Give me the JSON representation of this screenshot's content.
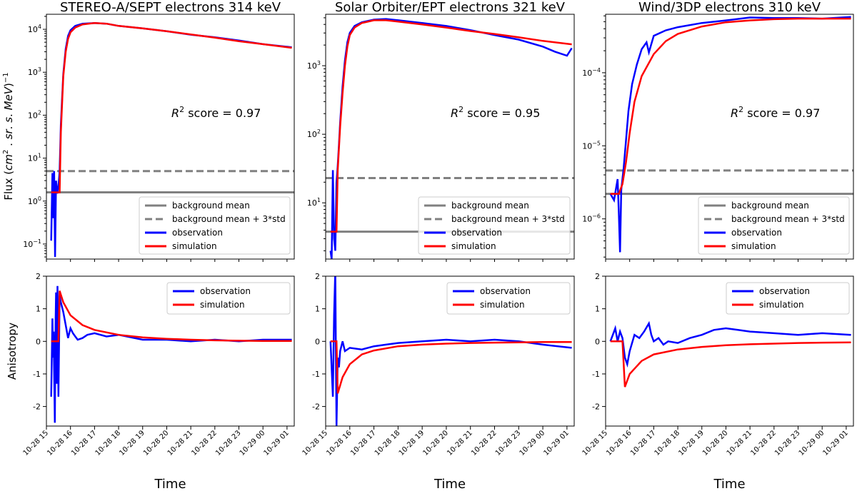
{
  "figure": {
    "ylabel_top_parts": [
      "Flux (",
      "cm",
      "2",
      " . ",
      "sr",
      ". ",
      "s",
      ". ",
      "MeV",
      ")",
      "−1"
    ],
    "ylabel_bottom": "Anisotropy",
    "xlabel": "Time",
    "time_ticks": [
      "10-28 15",
      "10-28 16",
      "10-28 17",
      "10-28 18",
      "10-28 19",
      "10-28 20",
      "10-28 21",
      "10-28 22",
      "10-28 23",
      "10-29 00",
      "10-29 01"
    ],
    "legend_flux": [
      "background mean",
      "background mean + 3*std",
      "observation",
      "simulation"
    ],
    "legend_aniso": [
      "observation",
      "simulation"
    ],
    "r2_parts": [
      "R",
      "2",
      " score = "
    ]
  },
  "colors": {
    "observation": "#0000ff",
    "simulation": "#ff0000",
    "background": "#808080"
  },
  "chart_data": [
    {
      "id": "stereo",
      "type": "line",
      "title": "STEREO-A/SEPT electrons 314 keV",
      "r2_value": "0.97",
      "x_start_hour": 15.2,
      "x_end_hour": 25.2,
      "flux": {
        "yscale": "log",
        "ylim_log10": [
          -1.35,
          4.35
        ],
        "yticks": [
          {
            "exp": -1,
            "label_exp": "−1"
          },
          {
            "exp": 0,
            "label_exp": "0"
          },
          {
            "exp": 1,
            "label_exp": "1"
          },
          {
            "exp": 2,
            "label_exp": "2"
          },
          {
            "exp": 3,
            "label_exp": "3"
          },
          {
            "exp": 4,
            "label_exp": "4"
          }
        ],
        "background_mean": 1.6,
        "background_mean_3std": 5.0,
        "observation": [
          [
            15.2,
            0.12
          ],
          [
            15.25,
            4.5
          ],
          [
            15.28,
            0.4
          ],
          [
            15.32,
            5.0
          ],
          [
            15.36,
            0.05
          ],
          [
            15.4,
            3.0
          ],
          [
            15.45,
            1.5
          ],
          [
            15.5,
            2.2
          ],
          [
            15.55,
            5
          ],
          [
            15.6,
            60
          ],
          [
            15.7,
            900
          ],
          [
            15.8,
            3500
          ],
          [
            15.9,
            7000
          ],
          [
            16.0,
            9500
          ],
          [
            16.2,
            12000
          ],
          [
            16.5,
            13500
          ],
          [
            17.0,
            14000
          ],
          [
            17.5,
            13500
          ],
          [
            18,
            12000
          ],
          [
            19,
            10500
          ],
          [
            20,
            9000
          ],
          [
            21,
            7500
          ],
          [
            22,
            6500
          ],
          [
            23,
            5500
          ],
          [
            24,
            4500
          ],
          [
            25.2,
            3800
          ]
        ],
        "simulation": [
          [
            15.2,
            1.6
          ],
          [
            15.55,
            1.6
          ],
          [
            15.6,
            40
          ],
          [
            15.7,
            800
          ],
          [
            15.8,
            3000
          ],
          [
            15.9,
            6000
          ],
          [
            16.0,
            8500
          ],
          [
            16.2,
            11000
          ],
          [
            16.5,
            13000
          ],
          [
            17.0,
            14000
          ],
          [
            17.5,
            13500
          ],
          [
            18,
            12000
          ],
          [
            19,
            10500
          ],
          [
            20,
            9000
          ],
          [
            21,
            7600
          ],
          [
            22,
            6400
          ],
          [
            23,
            5300
          ],
          [
            24,
            4500
          ],
          [
            25.2,
            3700
          ]
        ]
      },
      "anisotropy": {
        "ylim": [
          -2.6,
          2.0
        ],
        "yticks": [
          -2,
          -1,
          0,
          1,
          2
        ],
        "observation": [
          [
            15.2,
            -1.7
          ],
          [
            15.25,
            0.7
          ],
          [
            15.28,
            -0.5
          ],
          [
            15.3,
            0.3
          ],
          [
            15.35,
            -2.5
          ],
          [
            15.38,
            0.5
          ],
          [
            15.4,
            1.5
          ],
          [
            15.43,
            -1.3
          ],
          [
            15.46,
            1.7
          ],
          [
            15.5,
            -1.7
          ],
          [
            15.55,
            1.4
          ],
          [
            15.6,
            1.2
          ],
          [
            15.7,
            0.9
          ],
          [
            15.8,
            0.5
          ],
          [
            15.9,
            0.1
          ],
          [
            16.0,
            0.4
          ],
          [
            16.1,
            0.25
          ],
          [
            16.2,
            0.15
          ],
          [
            16.3,
            0.05
          ],
          [
            16.5,
            0.1
          ],
          [
            16.7,
            0.2
          ],
          [
            17.0,
            0.25
          ],
          [
            17.5,
            0.15
          ],
          [
            18,
            0.2
          ],
          [
            19,
            0.05
          ],
          [
            20,
            0.05
          ],
          [
            21,
            0.0
          ],
          [
            22,
            0.05
          ],
          [
            23,
            0.0
          ],
          [
            24,
            0.05
          ],
          [
            25.2,
            0.05
          ]
        ],
        "simulation": [
          [
            15.2,
            0.0
          ],
          [
            15.5,
            0.0
          ],
          [
            15.55,
            1.55
          ],
          [
            15.7,
            1.2
          ],
          [
            16.0,
            0.8
          ],
          [
            16.5,
            0.5
          ],
          [
            17.0,
            0.35
          ],
          [
            18,
            0.2
          ],
          [
            19,
            0.12
          ],
          [
            20,
            0.08
          ],
          [
            21,
            0.05
          ],
          [
            22,
            0.03
          ],
          [
            23,
            0.02
          ],
          [
            24,
            0.01
          ],
          [
            25.2,
            0.01
          ]
        ]
      }
    },
    {
      "id": "solo",
      "type": "line",
      "title": "Solar Orbiter/EPT electrons 321 keV",
      "r2_value": "0.95",
      "x_start_hour": 15.2,
      "x_end_hour": 25.2,
      "flux": {
        "yscale": "log",
        "ylim_log10": [
          0.18,
          3.75
        ],
        "yticks": [
          {
            "exp": 1,
            "label_exp": "1"
          },
          {
            "exp": 2,
            "label_exp": "2"
          },
          {
            "exp": 3,
            "label_exp": "3"
          }
        ],
        "background_mean": 3.8,
        "background_mean_3std": 23.0,
        "observation": [
          [
            15.2,
            2.0
          ],
          [
            15.25,
            1.5
          ],
          [
            15.3,
            30
          ],
          [
            15.35,
            3
          ],
          [
            15.4,
            2
          ],
          [
            15.45,
            20
          ],
          [
            15.5,
            35
          ],
          [
            15.55,
            70
          ],
          [
            15.6,
            150
          ],
          [
            15.7,
            500
          ],
          [
            15.8,
            1200
          ],
          [
            15.9,
            2200
          ],
          [
            16.0,
            3000
          ],
          [
            16.2,
            3800
          ],
          [
            16.5,
            4300
          ],
          [
            17,
            4700
          ],
          [
            17.5,
            4800
          ],
          [
            18,
            4600
          ],
          [
            19,
            4200
          ],
          [
            20,
            3800
          ],
          [
            21,
            3300
          ],
          [
            22,
            2800
          ],
          [
            23,
            2400
          ],
          [
            24,
            1900
          ],
          [
            24.5,
            1600
          ],
          [
            25.0,
            1400
          ],
          [
            25.2,
            1800
          ]
        ],
        "simulation": [
          [
            15.2,
            3.8
          ],
          [
            15.45,
            3.8
          ],
          [
            15.5,
            30
          ],
          [
            15.6,
            130
          ],
          [
            15.7,
            400
          ],
          [
            15.8,
            1000
          ],
          [
            15.9,
            1900
          ],
          [
            16.0,
            2800
          ],
          [
            16.2,
            3600
          ],
          [
            16.5,
            4200
          ],
          [
            17,
            4600
          ],
          [
            17.5,
            4600
          ],
          [
            18,
            4400
          ],
          [
            19,
            4000
          ],
          [
            20,
            3600
          ],
          [
            21,
            3200
          ],
          [
            22,
            2900
          ],
          [
            23,
            2600
          ],
          [
            24,
            2300
          ],
          [
            25.2,
            2050
          ]
        ]
      },
      "anisotropy": {
        "ylim": [
          -2.6,
          2.0
        ],
        "yticks": [
          -2,
          -1,
          0,
          1,
          2
        ],
        "observation": [
          [
            15.2,
            0.0
          ],
          [
            15.3,
            -1.7
          ],
          [
            15.35,
            0.8
          ],
          [
            15.4,
            2.2
          ],
          [
            15.42,
            0.0
          ],
          [
            15.45,
            -2.6
          ],
          [
            15.5,
            -0.5
          ],
          [
            15.55,
            -0.8
          ],
          [
            15.6,
            -0.3
          ],
          [
            15.7,
            0.0
          ],
          [
            15.8,
            -0.3
          ],
          [
            16.0,
            -0.2
          ],
          [
            16.5,
            -0.25
          ],
          [
            17,
            -0.15
          ],
          [
            17.5,
            -0.1
          ],
          [
            18,
            -0.05
          ],
          [
            19,
            0.0
          ],
          [
            20,
            0.05
          ],
          [
            21,
            0.0
          ],
          [
            22,
            0.05
          ],
          [
            23,
            0.0
          ],
          [
            24,
            -0.1
          ],
          [
            25.2,
            -0.2
          ]
        ],
        "simulation": [
          [
            15.2,
            0.0
          ],
          [
            15.45,
            0.0
          ],
          [
            15.5,
            -1.6
          ],
          [
            15.7,
            -1.1
          ],
          [
            16.0,
            -0.7
          ],
          [
            16.5,
            -0.4
          ],
          [
            17,
            -0.28
          ],
          [
            18,
            -0.15
          ],
          [
            19,
            -0.1
          ],
          [
            20,
            -0.07
          ],
          [
            21,
            -0.05
          ],
          [
            22,
            -0.04
          ],
          [
            23,
            -0.03
          ],
          [
            24,
            -0.02
          ],
          [
            25.2,
            -0.02
          ]
        ]
      }
    },
    {
      "id": "wind",
      "type": "line",
      "title": "Wind/3DP electrons 310 keV",
      "r2_value": "0.97",
      "x_start_hour": 15.2,
      "x_end_hour": 25.2,
      "flux": {
        "yscale": "log",
        "ylim_log10": [
          -6.55,
          -3.2
        ],
        "yticks": [
          {
            "exp": -6,
            "label_exp": "−6"
          },
          {
            "exp": -5,
            "label_exp": "−5"
          },
          {
            "exp": -4,
            "label_exp": "−4"
          }
        ],
        "background_mean": 2.2e-06,
        "background_mean_3std": 4.6e-06,
        "observation": [
          [
            15.2,
            2.2e-06
          ],
          [
            15.35,
            1.8e-06
          ],
          [
            15.5,
            3.5e-06
          ],
          [
            15.55,
            1.2e-06
          ],
          [
            15.6,
            3.5e-07
          ],
          [
            15.65,
            2.5e-06
          ],
          [
            15.75,
            5e-06
          ],
          [
            15.85,
            1.2e-05
          ],
          [
            15.95,
            3e-05
          ],
          [
            16.1,
            7e-05
          ],
          [
            16.3,
            0.00013
          ],
          [
            16.5,
            0.00021
          ],
          [
            16.7,
            0.00026
          ],
          [
            16.8,
            0.00019
          ],
          [
            17.0,
            0.00032
          ],
          [
            17.5,
            0.00038
          ],
          [
            18,
            0.00042
          ],
          [
            19,
            0.00048
          ],
          [
            20,
            0.00052
          ],
          [
            21,
            0.00057
          ],
          [
            22,
            0.00056
          ],
          [
            23,
            0.00056
          ],
          [
            24,
            0.00055
          ],
          [
            25.2,
            0.00058
          ]
        ],
        "simulation": [
          [
            15.2,
            2.2e-06
          ],
          [
            15.55,
            2.2e-06
          ],
          [
            15.7,
            3e-06
          ],
          [
            15.85,
            6e-06
          ],
          [
            16.0,
            1.5e-05
          ],
          [
            16.2,
            4e-05
          ],
          [
            16.5,
            9e-05
          ],
          [
            17,
            0.00018
          ],
          [
            17.5,
            0.00027
          ],
          [
            18,
            0.00034
          ],
          [
            19,
            0.00043
          ],
          [
            20,
            0.00049
          ],
          [
            21,
            0.00052
          ],
          [
            22,
            0.00054
          ],
          [
            23,
            0.00055
          ],
          [
            24,
            0.00055
          ],
          [
            25.2,
            0.00055
          ]
        ]
      },
      "anisotropy": {
        "ylim": [
          -2.6,
          2.0
        ],
        "yticks": [
          -2,
          -1,
          0,
          1,
          2
        ],
        "observation": [
          [
            15.2,
            0.0
          ],
          [
            15.3,
            0.2
          ],
          [
            15.4,
            0.4
          ],
          [
            15.5,
            0.0
          ],
          [
            15.6,
            0.3
          ],
          [
            15.7,
            0.1
          ],
          [
            15.8,
            -0.5
          ],
          [
            15.9,
            -0.7
          ],
          [
            16.0,
            -0.3
          ],
          [
            16.2,
            0.2
          ],
          [
            16.4,
            0.1
          ],
          [
            16.6,
            0.3
          ],
          [
            16.8,
            0.55
          ],
          [
            16.9,
            0.2
          ],
          [
            17.0,
            0.0
          ],
          [
            17.2,
            0.1
          ],
          [
            17.4,
            -0.1
          ],
          [
            17.6,
            0.0
          ],
          [
            18,
            -0.05
          ],
          [
            18.5,
            0.1
          ],
          [
            19,
            0.2
          ],
          [
            19.5,
            0.35
          ],
          [
            20,
            0.4
          ],
          [
            20.5,
            0.35
          ],
          [
            21,
            0.3
          ],
          [
            22,
            0.25
          ],
          [
            23,
            0.2
          ],
          [
            24,
            0.25
          ],
          [
            25.2,
            0.2
          ]
        ],
        "simulation": [
          [
            15.2,
            0.0
          ],
          [
            15.7,
            0.0
          ],
          [
            15.8,
            -1.4
          ],
          [
            16.0,
            -1.0
          ],
          [
            16.5,
            -0.6
          ],
          [
            17,
            -0.4
          ],
          [
            18,
            -0.25
          ],
          [
            19,
            -0.17
          ],
          [
            20,
            -0.12
          ],
          [
            21,
            -0.09
          ],
          [
            22,
            -0.07
          ],
          [
            23,
            -0.05
          ],
          [
            24,
            -0.04
          ],
          [
            25.2,
            -0.03
          ]
        ]
      }
    }
  ]
}
